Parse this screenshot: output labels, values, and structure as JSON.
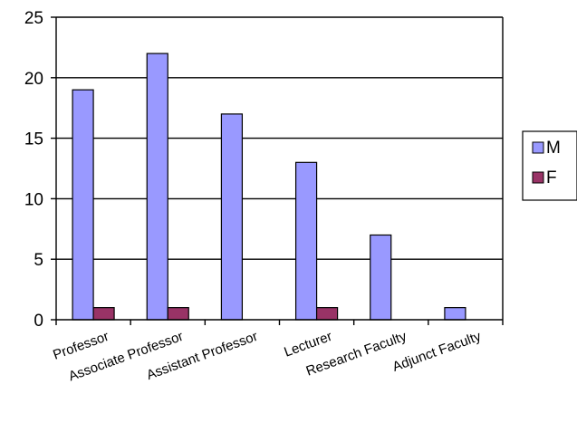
{
  "chart_data": {
    "type": "bar",
    "categories": [
      "Professor",
      "Associate Professor",
      "Assistant Professor",
      "Lecturer",
      "Research Faculty",
      "Adjunct Faculty"
    ],
    "series": [
      {
        "name": "M",
        "values": [
          19,
          22,
          17,
          13,
          7,
          1
        ],
        "color": "#9999ff"
      },
      {
        "name": "F",
        "values": [
          1,
          1,
          0,
          1,
          0,
          0
        ],
        "color": "#993366"
      }
    ],
    "yticks": [
      "0",
      "5",
      "10",
      "15",
      "20",
      "25"
    ],
    "ylim": [
      0,
      25
    ],
    "grid": true,
    "legend_position": "right",
    "title": "",
    "xlabel": "",
    "ylabel": ""
  }
}
